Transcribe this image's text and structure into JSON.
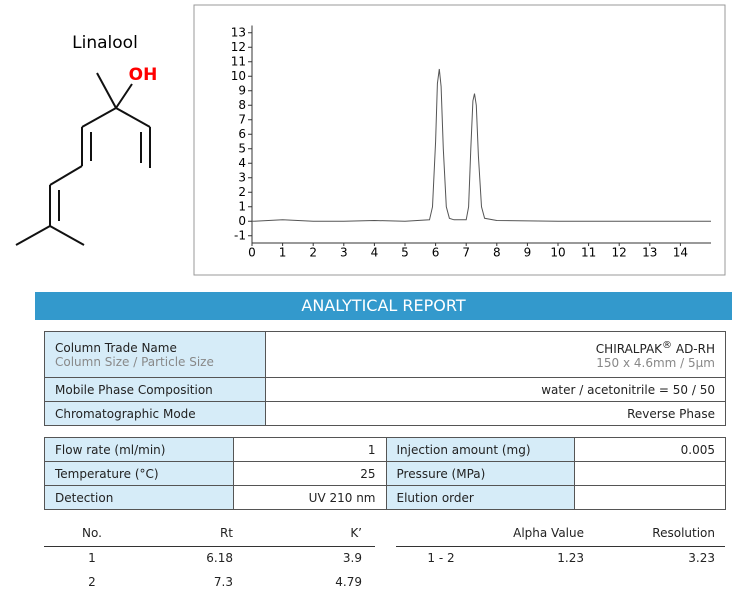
{
  "molecule": {
    "name": "Linalool",
    "group": "OH"
  },
  "chart_data": {
    "type": "line",
    "x": [
      0,
      1,
      2,
      3,
      4,
      5,
      5.8,
      5.9,
      6.0,
      6.06,
      6.12,
      6.18,
      6.25,
      6.35,
      6.45,
      6.6,
      7.0,
      7.08,
      7.15,
      7.22,
      7.27,
      7.33,
      7.4,
      7.5,
      7.6,
      8,
      10,
      12,
      15
    ],
    "values": [
      0,
      0.1,
      0,
      0,
      0.05,
      0,
      0.1,
      1.0,
      5.5,
      9.5,
      10.5,
      9.3,
      5,
      1,
      0.2,
      0.1,
      0.1,
      1,
      5,
      8.3,
      8.8,
      8,
      4.5,
      1,
      0.2,
      0.05,
      0,
      0,
      0
    ],
    "color": "#555555",
    "xlim": [
      0,
      15
    ],
    "xticks": [
      0,
      1,
      2,
      3,
      4,
      5,
      6,
      7,
      8,
      9,
      10,
      11,
      12,
      13,
      14
    ],
    "ylim": [
      -1.5,
      13.5
    ],
    "yticks": [
      -1,
      0,
      1,
      2,
      3,
      4,
      5,
      6,
      7,
      8,
      9,
      10,
      11,
      12,
      13
    ]
  },
  "report": {
    "title": "ANALYTICAL REPORT",
    "column": {
      "trade_label": "Column Trade Name",
      "size_label": "Column Size / Particle Size",
      "brand": "CHIRALPAK",
      "mark": "®",
      "model": "AD-RH",
      "size": "150 x 4.6mm / 5µm",
      "mobile_label": "Mobile Phase Composition",
      "mobile": "water / acetonitrile = 50 / 50",
      "mode_label": "Chromatographic Mode",
      "mode": "Reverse Phase"
    },
    "conditions": [
      [
        {
          "label": "Flow rate (ml/min)",
          "value": 1
        },
        {
          "label": "Injection amount (mg)",
          "value": 0.005
        }
      ],
      [
        {
          "label": "Temperature (°C)",
          "value": 25
        },
        {
          "label": "Pressure (MPa)"
        }
      ],
      [
        {
          "label": "Detection",
          "value": "UV 210 nm"
        },
        {
          "label": "Elution order"
        }
      ]
    ],
    "results": {
      "headers": [
        "No.",
        "Rt",
        "K’"
      ],
      "rows": [
        [
          1,
          6.18,
          3.9
        ],
        [
          2,
          7.3,
          4.79
        ]
      ]
    },
    "separation": {
      "headers": [
        "Alpha Value",
        "Resolution"
      ],
      "rows": [
        {
          "pair": "1 - 2",
          "alpha": 1.23,
          "resolution": 3.23
        }
      ]
    }
  }
}
